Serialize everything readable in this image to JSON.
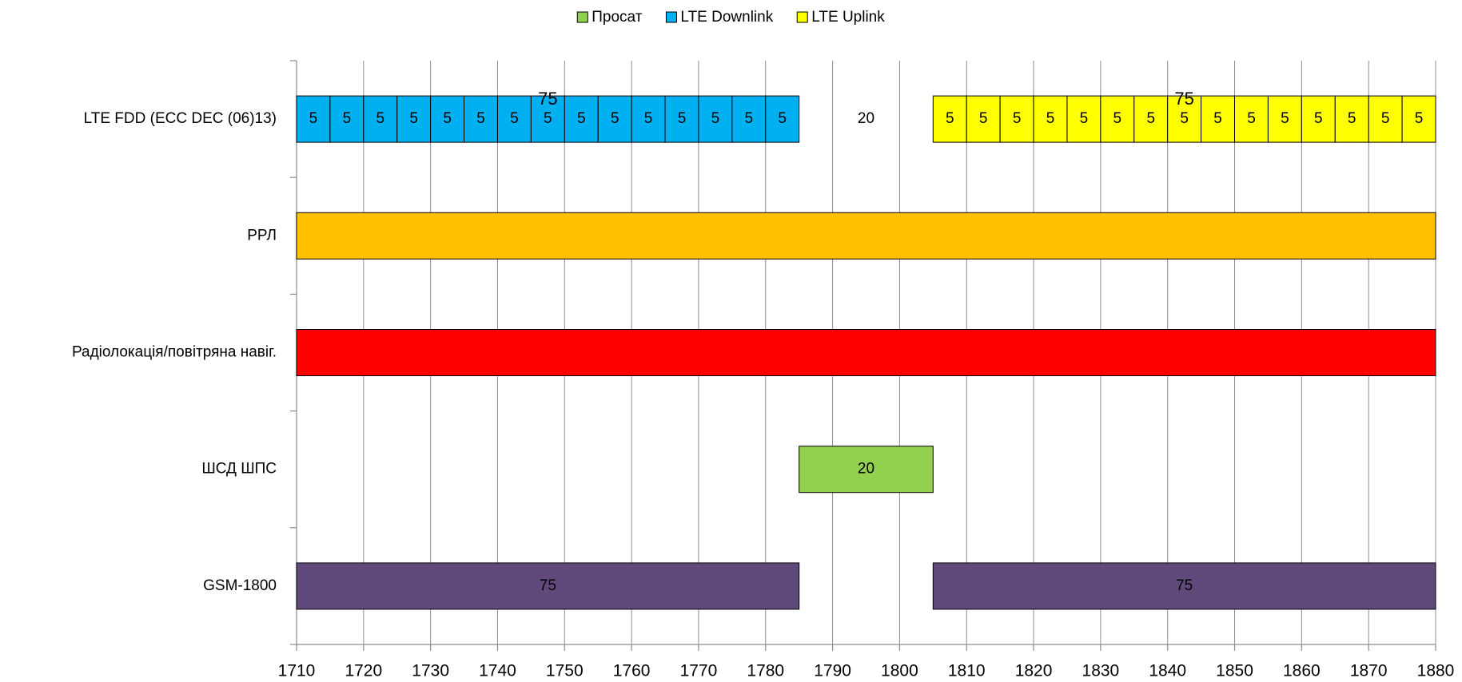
{
  "chart_data": {
    "type": "range-bar",
    "categories": [
      "LTE FDD (ECC DEC (06)13)",
      "РРЛ",
      "Радіолокація/повітряна навіг.",
      "ШСД ШПС",
      "GSM-1800"
    ],
    "rows": [
      {
        "groups": [
          {
            "start": 1710,
            "value": 75,
            "color": "#00b0f0",
            "show_value": true,
            "segments": [
              5,
              5,
              5,
              5,
              5,
              5,
              5,
              5,
              5,
              5,
              5,
              5,
              5,
              5,
              5
            ]
          },
          {
            "start": 1785,
            "value": 20,
            "color": null,
            "show_value": true
          },
          {
            "start": 1805,
            "value": 75,
            "color": "#ffff00",
            "show_value": true,
            "segments": [
              5,
              5,
              5,
              5,
              5,
              5,
              5,
              5,
              5,
              5,
              5,
              5,
              5,
              5,
              5
            ]
          }
        ]
      },
      {
        "groups": [
          {
            "start": 1710,
            "value": 170,
            "color": "#ffc000",
            "show_value": false
          }
        ]
      },
      {
        "groups": [
          {
            "start": 1710,
            "value": 170,
            "color": "#ff0000",
            "show_value": false
          }
        ]
      },
      {
        "groups": [
          {
            "start": 1785,
            "value": 20,
            "color": "#92d050",
            "show_value": true
          }
        ]
      },
      {
        "groups": [
          {
            "start": 1710,
            "value": 75,
            "color": "#604a7b",
            "show_value": true
          },
          {
            "start": 1805,
            "value": 75,
            "color": "#604a7b",
            "show_value": true
          }
        ]
      }
    ],
    "legend": [
      {
        "name": "Просат",
        "color": "#92d050"
      },
      {
        "name": "LTE Downlink",
        "color": "#00b0f0"
      },
      {
        "name": "LTE Uplink",
        "color": "#ffff00"
      }
    ],
    "legend_position": "top",
    "xlim": [
      1710,
      1880
    ],
    "xticks": [
      1710,
      1720,
      1730,
      1740,
      1750,
      1760,
      1770,
      1780,
      1790,
      1800,
      1810,
      1820,
      1830,
      1840,
      1850,
      1860,
      1870,
      1880
    ],
    "grid": true
  }
}
